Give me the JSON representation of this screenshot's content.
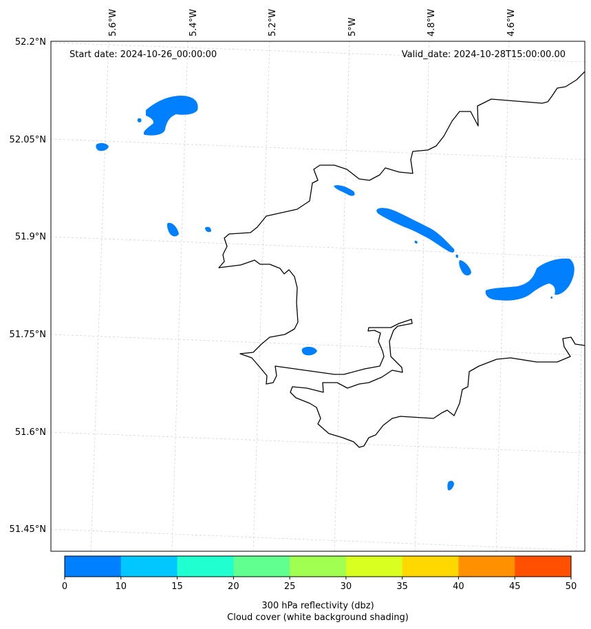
{
  "map": {
    "start_date": "Start date: 2024-10-26_00:00:00",
    "valid_date": "Valid_date: 2024-10-28T15:00:00.00",
    "lon_labels": [
      "5.6°W",
      "5.4°W",
      "5.2°W",
      "5°W",
      "4.8°W",
      "4.6°W"
    ],
    "lat_labels": [
      "52.2°N",
      "52.05°N",
      "51.9°N",
      "51.75°N",
      "51.6°N",
      "51.45°N"
    ],
    "gridlines": true,
    "reflectivity_color": "#0080ff",
    "coastline_color": "#000000"
  },
  "colorbar": {
    "ticks": [
      "0",
      "10",
      "15",
      "20",
      "25",
      "30",
      "35",
      "40",
      "45",
      "50"
    ],
    "colors": [
      "#0080ff",
      "#00c8ff",
      "#20ffd0",
      "#60ff90",
      "#a0ff50",
      "#d8ff20",
      "#ffd800",
      "#ff9000",
      "#ff5000"
    ],
    "title_line1": "300 hPa reflectivity (dbz)",
    "title_line2": "Cloud cover (white background shading)"
  }
}
